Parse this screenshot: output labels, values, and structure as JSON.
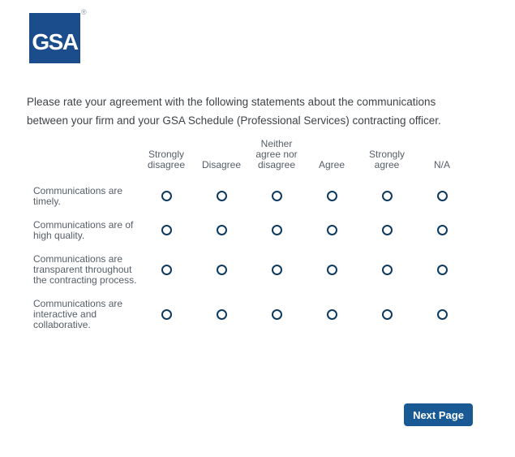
{
  "logo": {
    "text": "GSA",
    "registered_mark": "®"
  },
  "question": "Please rate your agreement with the following statements about the communications between your firm and your GSA Schedule (Professional Services) contracting officer.",
  "matrix": {
    "columns": [
      "Strongly disagree",
      "Disagree",
      "Neither agree nor disagree",
      "Agree",
      "Strongly agree",
      "N/A"
    ],
    "rows": [
      {
        "label": "Communications are timely."
      },
      {
        "label": "Communications are of high quality."
      },
      {
        "label": "Communications are transparent throughout the contracting process."
      },
      {
        "label": "Communications are interactive and collaborative."
      }
    ],
    "selected": "none"
  },
  "next_button_label": "Next Page",
  "colors": {
    "logo_blue": "#1b4d8c",
    "button_blue": "#1a5a94",
    "radio_border": "#0e3a5e",
    "matrix_text": "#555e66",
    "question_text": "#3f4347"
  }
}
